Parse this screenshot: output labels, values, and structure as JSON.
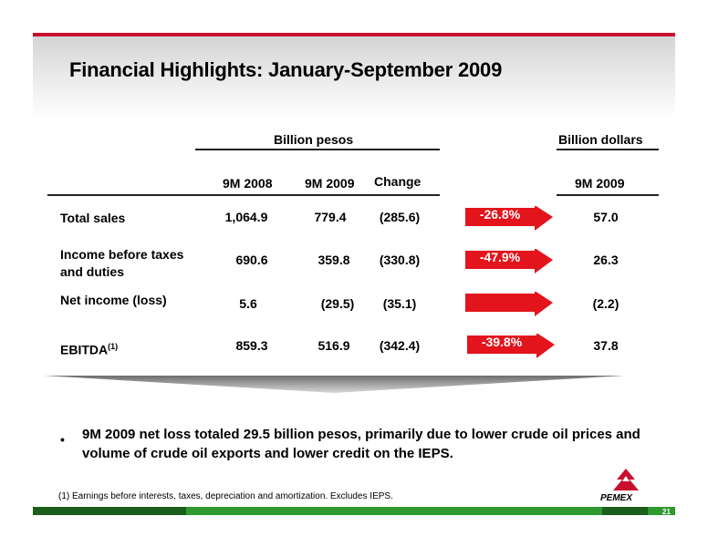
{
  "title": "Financial Highlights: January-September 2009",
  "groups": {
    "pesos": "Billion pesos",
    "dollars": "Billion dollars"
  },
  "columns": {
    "y2008": "9M 2008",
    "y2009": "9M 2009",
    "change": "Change",
    "usd2009": "9M 2009"
  },
  "rows": [
    {
      "label": "Total sales",
      "v2008": "1,064.9",
      "v2009": "779.4",
      "change": "(285.6)",
      "pct": "-26.8%",
      "usd": "57.0"
    },
    {
      "label": "Income before taxes and duties",
      "v2008": "690.6",
      "v2009": "359.8",
      "change": "(330.8)",
      "pct": "-47.9%",
      "usd": "26.3"
    },
    {
      "label": "Net income (loss)",
      "v2008": "5.6",
      "v2009": "(29.5)",
      "change": "(35.1)",
      "pct": "",
      "usd": "(2.2)"
    },
    {
      "label": "EBITDA",
      "label_sup": "(1)",
      "v2008": "859.3",
      "v2009": "516.9",
      "change": "(342.4)",
      "pct": "-39.8%",
      "usd": "37.8"
    }
  ],
  "bullet": "9M 2009 net loss totaled 29.5 billion pesos, primarily due to lower crude oil prices and volume of crude oil exports and lower credit on the IEPS.",
  "footnote": "(1) Earnings before interests, taxes, depreciation and amortization. Excludes IEPS.",
  "logo_text": "PEMEX",
  "page_number": "21",
  "colors": {
    "accent_red": "#c8102e",
    "arrow_red": "#e3141b",
    "footer_green": "#2e9a2e"
  }
}
